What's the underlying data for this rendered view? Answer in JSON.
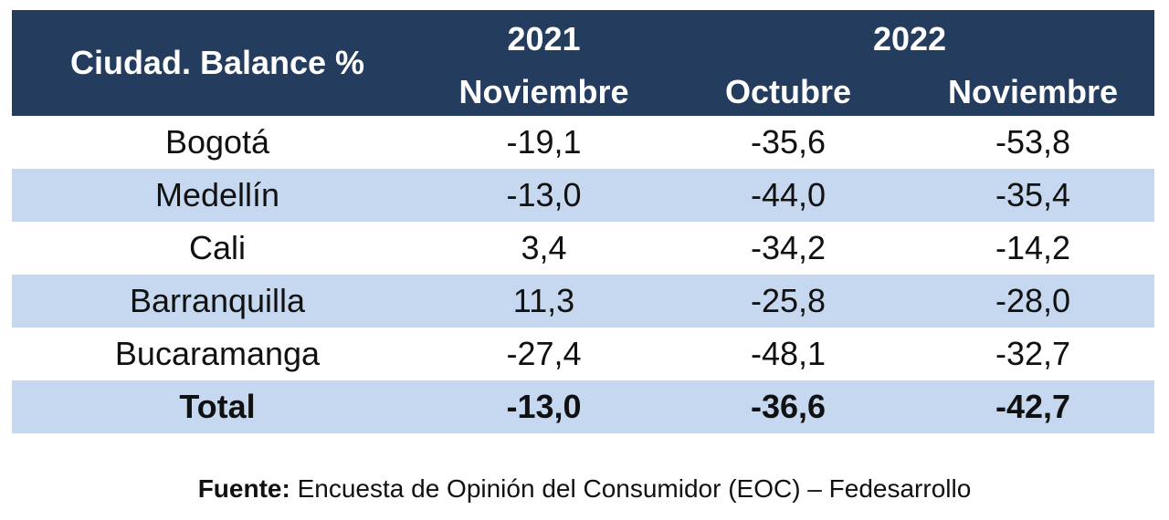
{
  "header": {
    "city_col": "Ciudad. Balance %",
    "year_2021": "2021",
    "year_2022": "2022",
    "col1_month": "Noviembre",
    "col2_month": "Octubre",
    "col3_month": "Noviembre"
  },
  "rows": [
    {
      "city": "Bogotá",
      "v2021_nov": "-19,1",
      "v2022_oct": "-35,6",
      "v2022_nov": "-53,8"
    },
    {
      "city": "Medellín",
      "v2021_nov": "-13,0",
      "v2022_oct": "-44,0",
      "v2022_nov": "-35,4"
    },
    {
      "city": "Cali",
      "v2021_nov": "3,4",
      "v2022_oct": "-34,2",
      "v2022_nov": "-14,2"
    },
    {
      "city": "Barranquilla",
      "v2021_nov": "11,3",
      "v2022_oct": "-25,8",
      "v2022_nov": "-28,0"
    },
    {
      "city": "Bucaramanga",
      "v2021_nov": "-27,4",
      "v2022_oct": "-48,1",
      "v2022_nov": "-32,7"
    },
    {
      "city": "Total",
      "v2021_nov": "-13,0",
      "v2022_oct": "-36,6",
      "v2022_nov": "-42,7"
    }
  ],
  "source": {
    "label": "Fuente:",
    "text": " Encuesta de Opinión del Consumidor (EOC) – Fedesarrollo"
  },
  "colors": {
    "header_bg": "#243c5e",
    "stripe_bg": "#c5d8f0"
  }
}
